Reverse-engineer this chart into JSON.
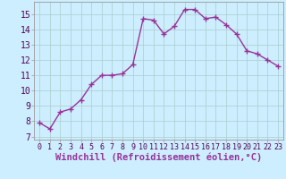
{
  "x": [
    0,
    1,
    2,
    3,
    4,
    5,
    6,
    7,
    8,
    9,
    10,
    11,
    12,
    13,
    14,
    15,
    16,
    17,
    18,
    19,
    20,
    21,
    22,
    23
  ],
  "y": [
    7.9,
    7.5,
    8.6,
    8.8,
    9.4,
    10.4,
    11.0,
    11.0,
    11.1,
    11.7,
    14.7,
    14.6,
    13.7,
    14.2,
    15.3,
    15.3,
    14.7,
    14.8,
    14.3,
    13.7,
    12.6,
    12.4,
    12.0,
    11.6
  ],
  "line_color": "#993399",
  "marker": "+",
  "marker_size": 4,
  "line_width": 1.0,
  "bg_color": "#cceeff",
  "grid_color": "#aacccc",
  "xlabel": "Windchill (Refroidissement éolien,°C)",
  "xlabel_fontsize": 7.5,
  "xlabel_color": "#993399",
  "ytick_min": 7,
  "ytick_max": 15,
  "ytick_step": 1,
  "xtick_labels": [
    "0",
    "1",
    "2",
    "3",
    "4",
    "5",
    "6",
    "7",
    "8",
    "9",
    "10",
    "11",
    "12",
    "13",
    "14",
    "15",
    "16",
    "17",
    "18",
    "19",
    "20",
    "21",
    "22",
    "23"
  ],
  "ylim": [
    6.8,
    15.8
  ],
  "xlim": [
    -0.5,
    23.5
  ],
  "tick_fontsize": 7,
  "xtick_fontsize": 6
}
